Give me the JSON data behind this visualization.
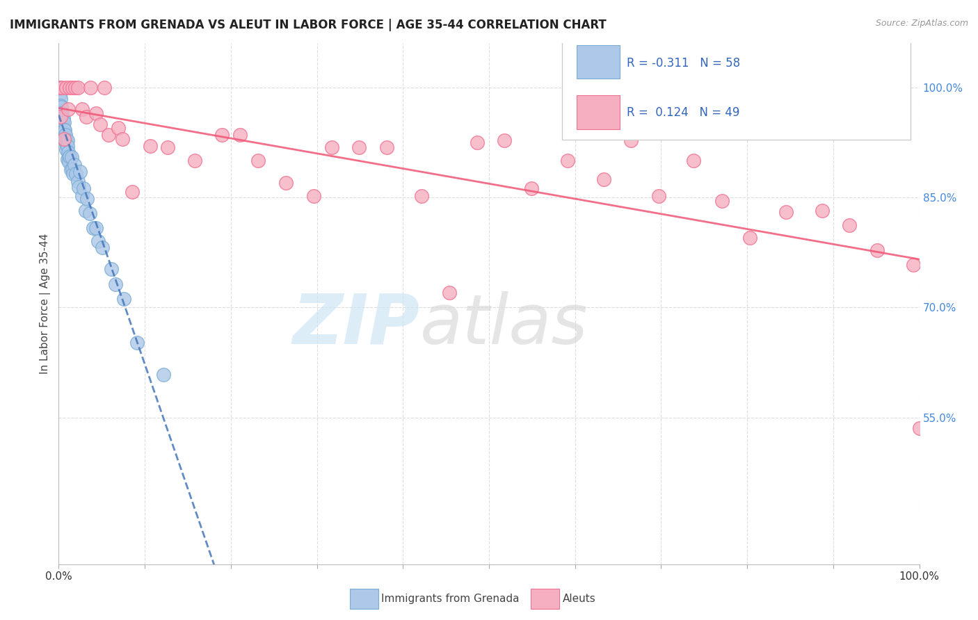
{
  "title": "IMMIGRANTS FROM GRENADA VS ALEUT IN LABOR FORCE | AGE 35-44 CORRELATION CHART",
  "source": "Source: ZipAtlas.com",
  "ylabel": "In Labor Force | Age 35-44",
  "xmin": 0.0,
  "xmax": 1.0,
  "ymin": 0.35,
  "ymax": 1.06,
  "right_y_ticks": [
    0.55,
    0.7,
    0.85,
    1.0
  ],
  "right_y_tick_labels": [
    "55.0%",
    "70.0%",
    "85.0%",
    "100.0%"
  ],
  "legend_blue_label": "Immigrants from Grenada",
  "legend_pink_label": "Aleuts",
  "r_blue": -0.311,
  "n_blue": 58,
  "r_pink": 0.124,
  "n_pink": 49,
  "blue_color": "#adc8e8",
  "pink_color": "#f5afc0",
  "blue_edge": "#7aadd4",
  "pink_edge": "#f07090",
  "trend_blue_color": "#4477bb",
  "trend_pink_color": "#f05575",
  "blue_scatter_x": [
    0.0008,
    0.0009,
    0.001,
    0.001,
    0.0015,
    0.002,
    0.002,
    0.0022,
    0.0025,
    0.003,
    0.003,
    0.003,
    0.0032,
    0.004,
    0.004,
    0.0042,
    0.005,
    0.005,
    0.0055,
    0.006,
    0.006,
    0.007,
    0.007,
    0.008,
    0.008,
    0.0085,
    0.009,
    0.009,
    0.01,
    0.01,
    0.01,
    0.011,
    0.012,
    0.012,
    0.013,
    0.014,
    0.015,
    0.016,
    0.017,
    0.018,
    0.02,
    0.022,
    0.023,
    0.025,
    0.027,
    0.029,
    0.031,
    0.033,
    0.036,
    0.04,
    0.043,
    0.046,
    0.051,
    0.061,
    0.066,
    0.076,
    0.091,
    0.122
  ],
  "blue_scatter_y": [
    1.0,
    1.0,
    1.0,
    0.99,
    0.975,
    0.985,
    0.975,
    0.967,
    0.96,
    0.973,
    0.965,
    0.957,
    0.952,
    0.965,
    0.958,
    0.952,
    0.958,
    0.945,
    0.938,
    0.952,
    0.942,
    0.942,
    0.932,
    0.935,
    0.928,
    0.922,
    0.928,
    0.915,
    0.928,
    0.92,
    0.902,
    0.912,
    0.905,
    0.898,
    0.906,
    0.888,
    0.905,
    0.889,
    0.882,
    0.895,
    0.882,
    0.872,
    0.864,
    0.885,
    0.852,
    0.862,
    0.832,
    0.848,
    0.828,
    0.808,
    0.808,
    0.79,
    0.782,
    0.752,
    0.732,
    0.712,
    0.652,
    0.608
  ],
  "pink_scatter_x": [
    0.001,
    0.002,
    0.004,
    0.006,
    0.009,
    0.011,
    0.013,
    0.016,
    0.019,
    0.022,
    0.027,
    0.032,
    0.037,
    0.043,
    0.048,
    0.053,
    0.058,
    0.069,
    0.074,
    0.085,
    0.106,
    0.127,
    0.158,
    0.19,
    0.211,
    0.232,
    0.264,
    0.296,
    0.317,
    0.349,
    0.381,
    0.422,
    0.454,
    0.486,
    0.518,
    0.549,
    0.591,
    0.633,
    0.665,
    0.697,
    0.738,
    0.771,
    0.803,
    0.845,
    0.887,
    0.919,
    0.951,
    0.993,
    1.0
  ],
  "pink_scatter_y": [
    1.0,
    0.96,
    1.0,
    0.93,
    1.0,
    0.97,
    1.0,
    1.0,
    1.0,
    1.0,
    0.97,
    0.96,
    1.0,
    0.965,
    0.95,
    1.0,
    0.935,
    0.945,
    0.93,
    0.858,
    0.92,
    0.918,
    0.9,
    0.935,
    0.935,
    0.9,
    0.87,
    0.852,
    0.918,
    0.918,
    0.918,
    0.852,
    0.72,
    0.925,
    0.928,
    0.862,
    0.9,
    0.875,
    0.928,
    0.852,
    0.9,
    0.845,
    0.795,
    0.83,
    0.832,
    0.812,
    0.778,
    0.758,
    0.535
  ]
}
